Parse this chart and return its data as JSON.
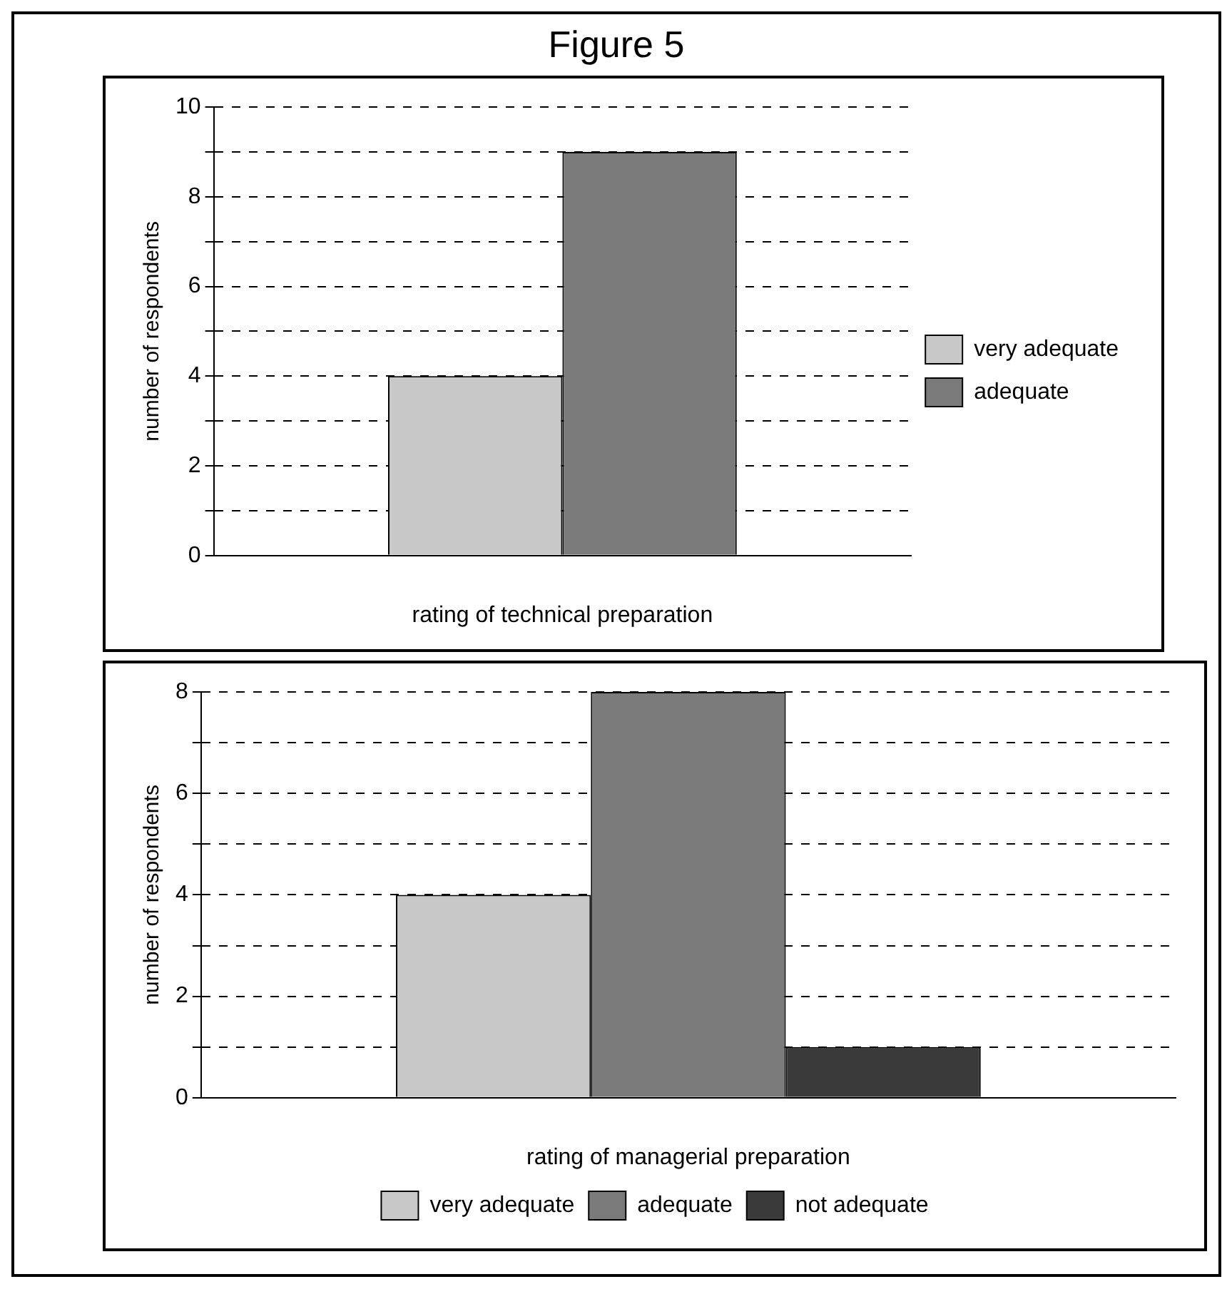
{
  "chart_data": [
    {
      "type": "bar",
      "title": "Figure 5",
      "xlabel": "rating of technical preparation",
      "ylabel": "number of respondents",
      "categories": [
        null
      ],
      "series": [
        {
          "name": "very adequate",
          "color": "#c8c8c8",
          "values": [
            4
          ]
        },
        {
          "name": "adequate",
          "color": "#7a7a7a",
          "values": [
            9
          ]
        }
      ],
      "ylim": [
        0,
        10
      ],
      "yticks": [
        0,
        {
          "value": 1,
          "label": null
        },
        2,
        {
          "value": 3,
          "label": null
        },
        4,
        {
          "value": 5,
          "label": null
        },
        6,
        {
          "value": 7,
          "label": null
        },
        8,
        {
          "value": 9,
          "label": null
        },
        10
      ],
      "grid": "y",
      "legend": "right"
    },
    {
      "type": "bar",
      "xlabel": "rating of managerial preparation",
      "ylabel": "number of respondents",
      "categories": [
        null
      ],
      "series": [
        {
          "name": "very adequate",
          "color": "#c8c8c8",
          "values": [
            4
          ]
        },
        {
          "name": "adequate",
          "color": "#7a7a7a",
          "values": [
            8
          ]
        },
        {
          "name": "not adequate",
          "color": "#3a3a3a",
          "values": [
            1
          ]
        }
      ],
      "ylim": [
        0,
        8
      ],
      "yticks": [
        0,
        {
          "value": 1,
          "label": null
        },
        2,
        {
          "value": 3,
          "label": null
        },
        4,
        {
          "value": 5,
          "label": null
        },
        6,
        {
          "value": 7,
          "label": null
        },
        8
      ],
      "grid": "y",
      "legend": "bottom"
    }
  ]
}
